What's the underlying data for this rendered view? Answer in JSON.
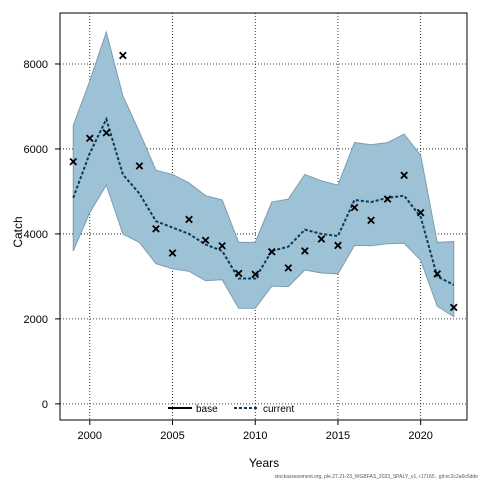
{
  "chart_data": {
    "type": "line",
    "xlabel": "Years",
    "ylabel": "Catch",
    "xlim": [
      1998.2,
      2022.8
    ],
    "ylim": [
      -380,
      9200
    ],
    "x_ticks": [
      2000,
      2005,
      2010,
      2015,
      2020
    ],
    "y_ticks": [
      0,
      2000,
      4000,
      6000,
      8000
    ],
    "grid": true,
    "legend": {
      "placement": "bottom-center",
      "entries": [
        {
          "label": "base",
          "style": "solid",
          "color": "#000000"
        },
        {
          "label": "current",
          "style": "dashed",
          "color": "#0b3a5c"
        }
      ]
    },
    "colors": {
      "band_fill": "#9dc1d5",
      "band_stroke": "#7a9db0",
      "current_line": "#0b3a5c",
      "observed_marker": "#000000",
      "grid": "#000000"
    },
    "years": [
      1999,
      2000,
      2001,
      2002,
      2003,
      2004,
      2005,
      2006,
      2007,
      2008,
      2009,
      2010,
      2011,
      2012,
      2013,
      2014,
      2015,
      2016,
      2017,
      2018,
      2019,
      2020,
      2021,
      2022
    ],
    "series": [
      {
        "name": "current",
        "values": [
          4850,
          5900,
          6700,
          5400,
          4950,
          4300,
          4150,
          4000,
          3750,
          3600,
          2950,
          2950,
          3600,
          3700,
          4100,
          4000,
          3950,
          4800,
          4750,
          4850,
          4900,
          4400,
          3000,
          2800
        ]
      }
    ],
    "band_upper": [
      6550,
      7600,
      8750,
      7250,
      6400,
      5500,
      5400,
      5200,
      4900,
      4800,
      3800,
      3800,
      4750,
      4820,
      5400,
      5250,
      5150,
      6150,
      6100,
      6150,
      6350,
      5850,
      3800,
      3820
    ],
    "band_lower": [
      3600,
      4500,
      5150,
      4000,
      3800,
      3300,
      3180,
      3120,
      2900,
      2920,
      2250,
      2250,
      2770,
      2760,
      3150,
      3080,
      3060,
      3730,
      3720,
      3770,
      3780,
      3380,
      2300,
      2050
    ],
    "observed": [
      5700,
      6250,
      6380,
      8200,
      5600,
      4120,
      3550,
      4340,
      3850,
      3720,
      3070,
      3050,
      3580,
      3200,
      3600,
      3880,
      3730,
      4620,
      4320,
      4820,
      5380,
      4500,
      3060,
      2270
    ]
  },
  "footer": "stockassessment.org, ple.27.21-23_WGBFAS_2023_SPALY_v1, r17165 , git:ec2c2a0c6dde"
}
